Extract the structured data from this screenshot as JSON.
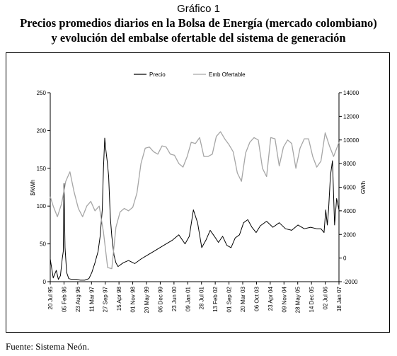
{
  "header": {
    "grafico": "Gráfico 1",
    "title_line1": "Precios promedios diarios en la Bolsa de Energía (mercado colombiano)",
    "title_line2": "y evolución del embalse ofertable del sistema de generación"
  },
  "source": "Fuente: Sistema Neón.",
  "chart_data": {
    "type": "line",
    "title": "",
    "ylabel_left": "$/kWh",
    "ylabel_right": "GWh",
    "ylim_left": [
      0,
      250
    ],
    "ylim_right": [
      -2000,
      14000
    ],
    "yticks_left": [
      "0",
      "50",
      "100",
      "150",
      "200",
      "250"
    ],
    "yticks_right": [
      "-2000",
      "0",
      "2000",
      "4000",
      "6000",
      "8000",
      "10000",
      "12000",
      "14000"
    ],
    "x_tick_labels": [
      "20 Jul 95",
      "05 Feb 96",
      "23 Aug 96",
      "11 Mar 97",
      "27 Sep 97",
      "15 Apr 98",
      "01 Nov 98",
      "20 May 99",
      "06 Dec 99",
      "23 Jun 00",
      "09 Jan 01",
      "28 Jul 01",
      "13 Feb 02",
      "01 Sep 02",
      "20 Mar 03",
      "06 Oct 03",
      "23 Apr 04",
      "09 Nov 04",
      "28 May 05",
      "14 Dec 05",
      "02 Jul 06",
      "18 Jan 07"
    ],
    "legend_position": "top-center",
    "grid": false,
    "series": [
      {
        "name": "Precio",
        "axis": "left",
        "color": "#000000",
        "x": [
          "1995-07-20",
          "1995-09-01",
          "1995-10-15",
          "1995-11-15",
          "1995-12-15",
          "1996-01-10",
          "1996-01-25",
          "1996-02-05",
          "1996-02-20",
          "1996-03-15",
          "1996-04-15",
          "1996-06-01",
          "1996-08-01",
          "1996-10-01",
          "1996-12-01",
          "1997-02-01",
          "1997-03-15",
          "1997-05-01",
          "1997-06-15",
          "1997-07-15",
          "1997-08-15",
          "1997-09-01",
          "1997-09-20",
          "1997-10-05",
          "1997-10-25",
          "1997-11-15",
          "1997-12-10",
          "1998-01-01",
          "1998-02-01",
          "1998-03-01",
          "1998-04-01",
          "1998-05-01",
          "1998-06-15",
          "1998-09-01",
          "1998-12-01",
          "1999-03-01",
          "1999-06-01",
          "1999-09-01",
          "1999-12-01",
          "2000-03-01",
          "2000-06-01",
          "2000-09-01",
          "2000-12-01",
          "2001-02-01",
          "2001-04-01",
          "2001-06-01",
          "2001-08-01",
          "2001-10-01",
          "2001-12-01",
          "2002-02-01",
          "2002-04-01",
          "2002-06-01",
          "2002-08-01",
          "2002-10-01",
          "2002-12-01",
          "2003-02-01",
          "2003-04-01",
          "2003-06-01",
          "2003-08-01",
          "2003-10-01",
          "2003-12-01",
          "2004-03-01",
          "2004-06-01",
          "2004-09-01",
          "2004-12-01",
          "2005-03-01",
          "2005-06-01",
          "2005-09-01",
          "2005-12-01",
          "2006-03-01",
          "2006-05-01",
          "2006-06-15",
          "2006-07-10",
          "2006-08-01",
          "2006-08-20",
          "2006-09-15",
          "2006-10-15",
          "2006-11-15",
          "2006-12-15",
          "2007-01-18"
        ],
        "y": [
          30,
          5,
          15,
          3,
          8,
          30,
          40,
          130,
          45,
          12,
          4,
          3,
          3,
          2,
          2,
          4,
          12,
          25,
          40,
          60,
          95,
          150,
          190,
          175,
          160,
          140,
          85,
          60,
          35,
          25,
          20,
          22,
          25,
          28,
          24,
          30,
          35,
          40,
          45,
          50,
          55,
          62,
          50,
          60,
          95,
          78,
          45,
          55,
          68,
          60,
          52,
          60,
          48,
          45,
          58,
          62,
          78,
          82,
          72,
          65,
          74,
          80,
          72,
          78,
          70,
          68,
          75,
          70,
          72,
          70,
          70,
          65,
          95,
          75,
          95,
          140,
          160,
          75,
          110,
          95
        ]
      },
      {
        "name": "Emb Ofertable",
        "axis": "right",
        "color": "#a6a6a6",
        "x": [
          "1995-07-20",
          "1995-09-01",
          "1995-11-01",
          "1996-01-01",
          "1996-03-01",
          "1996-05-01",
          "1996-07-01",
          "1996-09-01",
          "1996-11-01",
          "1997-01-01",
          "1997-03-01",
          "1997-05-01",
          "1997-07-01",
          "1997-09-01",
          "1997-11-01",
          "1998-01-01",
          "1998-03-01",
          "1998-05-01",
          "1998-07-01",
          "1998-09-01",
          "1998-11-01",
          "1999-01-01",
          "1999-03-01",
          "1999-05-01",
          "1999-07-01",
          "1999-09-01",
          "1999-11-01",
          "2000-01-01",
          "2000-03-01",
          "2000-05-01",
          "2000-07-01",
          "2000-09-01",
          "2000-11-01",
          "2001-01-01",
          "2001-03-01",
          "2001-05-01",
          "2001-07-01",
          "2001-09-01",
          "2001-11-01",
          "2002-01-01",
          "2002-03-01",
          "2002-05-01",
          "2002-07-01",
          "2002-09-01",
          "2002-11-01",
          "2003-01-01",
          "2003-03-01",
          "2003-05-01",
          "2003-07-01",
          "2003-09-01",
          "2003-11-01",
          "2004-01-01",
          "2004-03-01",
          "2004-05-01",
          "2004-07-01",
          "2004-09-01",
          "2004-11-01",
          "2005-01-01",
          "2005-03-01",
          "2005-05-01",
          "2005-07-01",
          "2005-09-01",
          "2005-11-01",
          "2006-01-01",
          "2006-03-01",
          "2006-05-01",
          "2006-07-01",
          "2006-09-01",
          "2006-11-01",
          "2007-01-18"
        ],
        "y": [
          5200,
          4400,
          3500,
          4600,
          6500,
          7300,
          5600,
          4200,
          3500,
          4400,
          4800,
          4000,
          4400,
          2200,
          -800,
          -900,
          2600,
          3900,
          4200,
          4000,
          4300,
          5500,
          8000,
          9300,
          9400,
          9000,
          8800,
          9500,
          9400,
          8800,
          8700,
          8000,
          7700,
          8600,
          9800,
          9700,
          10200,
          8600,
          8600,
          8800,
          10300,
          10700,
          10100,
          9600,
          9000,
          7200,
          6500,
          8900,
          9800,
          10200,
          10000,
          7600,
          6900,
          10200,
          10100,
          7800,
          9400,
          10000,
          9700,
          7600,
          9300,
          10100,
          10100,
          8600,
          7700,
          8200,
          10600,
          9500,
          8600,
          9800
        ]
      }
    ]
  }
}
